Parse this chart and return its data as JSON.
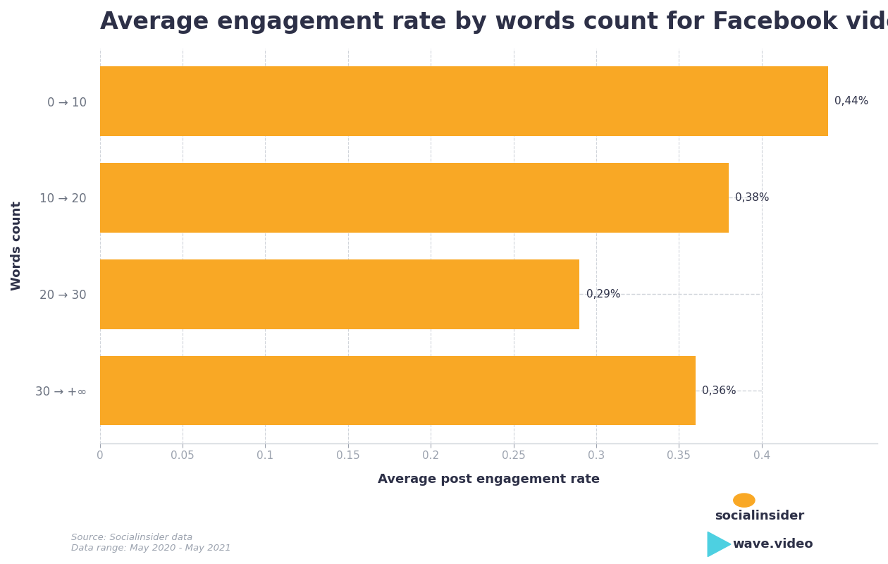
{
  "title": "Average engagement rate by words count for Facebook videos",
  "categories": [
    "0 → 10",
    "10 → 20",
    "20 → 30",
    "30 → +∞"
  ],
  "values": [
    0.44,
    0.38,
    0.29,
    0.36
  ],
  "value_labels": [
    "0,44%",
    "0,38%",
    "0,29%",
    "0,36%"
  ],
  "bar_color": "#F9A825",
  "xlabel": "Average post engagement rate",
  "ylabel": "Words count",
  "xlim": [
    0,
    0.47
  ],
  "xticks": [
    0,
    0.05,
    0.1,
    0.15,
    0.2,
    0.25,
    0.3,
    0.35,
    0.4
  ],
  "xtick_labels": [
    "0",
    "0.05",
    "0.1",
    "0.15",
    "0.2",
    "0.25",
    "0.3",
    "0.35",
    "0.4"
  ],
  "title_color": "#2d3047",
  "label_color": "#6b7280",
  "tick_color": "#9ca3af",
  "grid_color": "#d1d5db",
  "background_color": "#ffffff",
  "source_text": "Source: Socialinsider data\nData range: May 2020 - May 2021",
  "title_fontsize": 24,
  "ylabel_fontsize": 13,
  "xlabel_fontsize": 13,
  "ytick_fontsize": 12,
  "xtick_fontsize": 11,
  "value_label_fontsize": 11,
  "brand1_text": "socialinsider",
  "brand2_text": "wave.video",
  "brand_color": "#2d3047",
  "brand_dot_color": "#F9A825",
  "brand_arrow_color": "#4dd0e1"
}
